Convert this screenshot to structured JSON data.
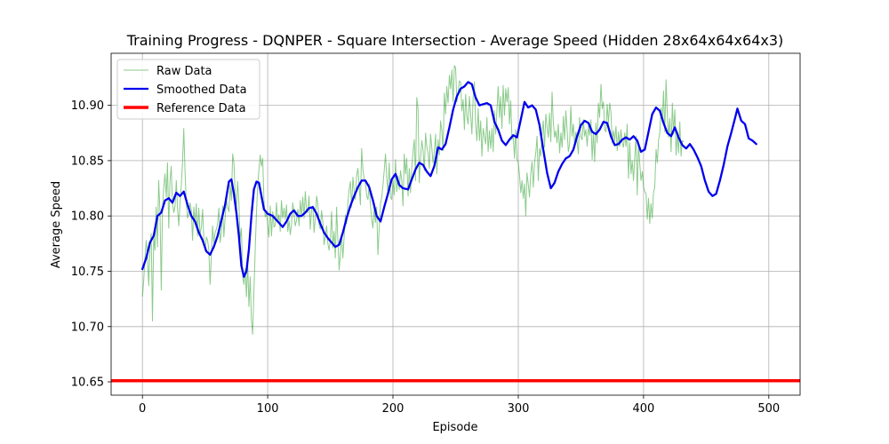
{
  "chart_data": {
    "type": "line",
    "title": "Training Progress - DQNPER - Square Intersection - Average Speed (Hidden 28x64x64x64x3)",
    "xlabel": "Episode",
    "ylabel": "Average Speed",
    "xlim": [
      -25,
      525
    ],
    "ylim": [
      10.638,
      10.947
    ],
    "xticks": [
      0,
      100,
      200,
      300,
      400,
      500
    ],
    "yticks": [
      10.65,
      10.7,
      10.75,
      10.8,
      10.85,
      10.9
    ],
    "grid": true,
    "legend_position": "top-left",
    "series": [
      {
        "name": "Raw Data",
        "color": "#2ca02c",
        "style": "thin-translucent",
        "x_start": 0,
        "x_step": 1,
        "values": [
          10.727,
          10.741,
          10.761,
          10.778,
          10.762,
          10.737,
          10.771,
          10.784,
          10.705,
          10.781,
          10.769,
          10.808,
          10.772,
          10.832,
          10.803,
          10.733,
          10.807,
          10.826,
          10.838,
          10.817,
          10.848,
          10.789,
          10.831,
          10.845,
          10.812,
          10.803,
          10.809,
          10.832,
          10.807,
          10.791,
          10.812,
          10.827,
          10.848,
          10.879,
          10.841,
          10.812,
          10.798,
          10.803,
          10.812,
          10.805,
          10.778,
          10.808,
          10.793,
          10.811,
          10.782,
          10.807,
          10.783,
          10.79,
          10.806,
          10.778,
          10.769,
          10.781,
          10.778,
          10.769,
          10.738,
          10.762,
          10.791,
          10.776,
          10.785,
          10.788,
          10.793,
          10.807,
          10.776,
          10.785,
          10.809,
          10.781,
          10.798,
          10.815,
          10.808,
          10.804,
          10.828,
          10.814,
          10.856,
          10.848,
          10.821,
          10.807,
          10.831,
          10.812,
          10.778,
          10.789,
          10.745,
          10.738,
          10.752,
          10.727,
          10.758,
          10.718,
          10.745,
          10.706,
          10.693,
          10.731,
          10.768,
          10.803,
          10.828,
          10.842,
          10.855,
          10.845,
          10.852,
          10.814,
          10.799,
          10.803,
          10.793,
          10.781,
          10.809,
          10.782,
          10.804,
          10.79,
          10.791,
          10.812,
          10.795,
          10.801,
          10.786,
          10.814,
          10.798,
          10.807,
          10.797,
          10.81,
          10.786,
          10.796,
          10.783,
          10.792,
          10.812,
          10.802,
          10.791,
          10.796,
          10.806,
          10.791,
          10.814,
          10.8,
          10.817,
          10.798,
          10.822,
          10.806,
          10.803,
          10.818,
          10.788,
          10.806,
          10.809,
          10.785,
          10.798,
          10.818,
          10.811,
          10.792,
          10.788,
          10.805,
          10.795,
          10.774,
          10.782,
          10.791,
          10.775,
          10.769,
          10.779,
          10.804,
          10.771,
          10.786,
          10.762,
          10.808,
          10.779,
          10.751,
          10.766,
          10.784,
          10.762,
          10.781,
          10.801,
          10.793,
          10.812,
          10.824,
          10.831,
          10.808,
          10.835,
          10.822,
          10.815,
          10.837,
          10.843,
          10.827,
          10.81,
          10.861,
          10.842,
          10.834,
          10.83,
          10.818,
          10.815,
          10.829,
          10.81,
          10.797,
          10.789,
          10.807,
          10.794,
          10.808,
          10.765,
          10.788,
          10.811,
          10.817,
          10.828,
          10.841,
          10.856,
          10.835,
          10.82,
          10.848,
          10.817,
          10.815,
          10.832,
          10.819,
          10.851,
          10.822,
          10.836,
          10.824,
          10.841,
          10.832,
          10.809,
          10.856,
          10.838,
          10.852,
          10.818,
          10.843,
          10.821,
          10.844,
          10.858,
          10.869,
          10.832,
          10.907,
          10.897,
          10.83,
          10.852,
          10.868,
          10.859,
          10.841,
          10.875,
          10.862,
          10.857,
          10.843,
          10.874,
          10.862,
          10.848,
          10.857,
          10.874,
          10.838,
          10.869,
          10.855,
          10.886,
          10.877,
          10.859,
          10.911,
          10.892,
          10.917,
          10.902,
          10.927,
          10.915,
          10.932,
          10.903,
          10.936,
          10.934,
          10.903,
          10.911,
          10.922,
          10.921,
          10.895,
          10.905,
          10.878,
          10.91,
          10.89,
          10.883,
          10.908,
          10.892,
          10.874,
          10.907,
          10.921,
          10.883,
          10.868,
          10.897,
          10.868,
          10.886,
          10.854,
          10.879,
          10.872,
          10.865,
          10.889,
          10.858,
          10.877,
          10.861,
          10.879,
          10.858,
          10.895,
          10.874,
          10.896,
          10.917,
          10.889,
          10.908,
          10.879,
          10.918,
          10.891,
          10.915,
          10.903,
          10.916,
          10.883,
          10.904,
          10.869,
          10.873,
          10.852,
          10.878,
          10.851,
          10.848,
          10.837,
          10.821,
          10.832,
          10.816,
          10.829,
          10.8,
          10.839,
          10.829,
          10.817,
          10.838,
          10.849,
          10.826,
          10.848,
          10.857,
          10.872,
          10.832,
          10.861,
          10.854,
          10.874,
          10.886,
          10.862,
          10.892,
          10.88,
          10.871,
          10.893,
          10.867,
          10.912,
          10.885,
          10.871,
          10.877,
          10.866,
          10.883,
          10.857,
          10.875,
          10.862,
          10.89,
          10.869,
          10.895,
          10.878,
          10.858,
          10.865,
          10.899,
          10.872,
          10.883,
          10.864,
          10.876,
          10.867,
          10.856,
          10.889,
          10.871,
          10.869,
          10.887,
          10.872,
          10.878,
          10.863,
          10.881,
          10.873,
          10.887,
          10.851,
          10.876,
          10.849,
          10.884,
          10.866,
          10.902,
          10.889,
          10.919,
          10.897,
          10.903,
          10.878,
          10.876,
          10.901,
          10.884,
          10.902,
          10.894,
          10.866,
          10.877,
          10.868,
          10.881,
          10.859,
          10.876,
          10.863,
          10.878,
          10.866,
          10.862,
          10.875,
          10.863,
          10.883,
          10.834,
          10.866,
          10.838,
          10.85,
          10.832,
          10.853,
          10.872,
          10.819,
          10.864,
          10.848,
          10.832,
          10.84,
          10.826,
          10.822,
          10.82,
          10.797,
          10.816,
          10.793,
          10.811,
          10.798,
          10.821,
          10.826,
          10.86,
          10.848,
          10.869,
          10.875,
          10.898,
          10.885,
          10.913,
          10.876,
          10.923,
          10.893,
          10.871,
          10.888,
          10.858,
          10.902,
          10.874,
          10.896,
          10.855,
          10.876,
          10.857,
          10.885,
          10.854,
          10.868,
          10.867
        ]
      },
      {
        "name": "Smoothed Data",
        "color": "#0000ee",
        "style": "thick",
        "points": [
          [
            0,
            10.752
          ],
          [
            3,
            10.762
          ],
          [
            6,
            10.776
          ],
          [
            9,
            10.782
          ],
          [
            12,
            10.8
          ],
          [
            15,
            10.803
          ],
          [
            18,
            10.814
          ],
          [
            21,
            10.816
          ],
          [
            24,
            10.812
          ],
          [
            27,
            10.821
          ],
          [
            30,
            10.818
          ],
          [
            33,
            10.822
          ],
          [
            36,
            10.81
          ],
          [
            39,
            10.8
          ],
          [
            42,
            10.795
          ],
          [
            45,
            10.785
          ],
          [
            48,
            10.778
          ],
          [
            51,
            10.768
          ],
          [
            54,
            10.765
          ],
          [
            57,
            10.772
          ],
          [
            60,
            10.782
          ],
          [
            63,
            10.796
          ],
          [
            66,
            10.81
          ],
          [
            69,
            10.831
          ],
          [
            71,
            10.833
          ],
          [
            73,
            10.82
          ],
          [
            75,
            10.803
          ],
          [
            77,
            10.782
          ],
          [
            79,
            10.755
          ],
          [
            81,
            10.745
          ],
          [
            83,
            10.75
          ],
          [
            85,
            10.77
          ],
          [
            87,
            10.8
          ],
          [
            89,
            10.824
          ],
          [
            91,
            10.831
          ],
          [
            93,
            10.83
          ],
          [
            95,
            10.818
          ],
          [
            97,
            10.806
          ],
          [
            100,
            10.802
          ],
          [
            104,
            10.8
          ],
          [
            108,
            10.795
          ],
          [
            112,
            10.79
          ],
          [
            115,
            10.795
          ],
          [
            118,
            10.802
          ],
          [
            121,
            10.805
          ],
          [
            124,
            10.8
          ],
          [
            127,
            10.8
          ],
          [
            130,
            10.803
          ],
          [
            133,
            10.807
          ],
          [
            136,
            10.808
          ],
          [
            139,
            10.802
          ],
          [
            142,
            10.793
          ],
          [
            145,
            10.785
          ],
          [
            148,
            10.78
          ],
          [
            151,
            10.776
          ],
          [
            154,
            10.772
          ],
          [
            157,
            10.774
          ],
          [
            160,
            10.785
          ],
          [
            163,
            10.798
          ],
          [
            166,
            10.809
          ],
          [
            169,
            10.818
          ],
          [
            172,
            10.826
          ],
          [
            175,
            10.832
          ],
          [
            178,
            10.832
          ],
          [
            181,
            10.826
          ],
          [
            184,
            10.814
          ],
          [
            187,
            10.8
          ],
          [
            190,
            10.795
          ],
          [
            193,
            10.808
          ],
          [
            196,
            10.82
          ],
          [
            199,
            10.833
          ],
          [
            202,
            10.838
          ],
          [
            205,
            10.828
          ],
          [
            208,
            10.825
          ],
          [
            212,
            10.824
          ],
          [
            215,
            10.833
          ],
          [
            218,
            10.842
          ],
          [
            221,
            10.848
          ],
          [
            224,
            10.846
          ],
          [
            227,
            10.84
          ],
          [
            230,
            10.836
          ],
          [
            233,
            10.845
          ],
          [
            236,
            10.862
          ],
          [
            239,
            10.86
          ],
          [
            242,
            10.865
          ],
          [
            245,
            10.88
          ],
          [
            248,
            10.896
          ],
          [
            251,
            10.908
          ],
          [
            254,
            10.915
          ],
          [
            257,
            10.917
          ],
          [
            260,
            10.921
          ],
          [
            263,
            10.919
          ],
          [
            266,
            10.907
          ],
          [
            269,
            10.9
          ],
          [
            272,
            10.901
          ],
          [
            275,
            10.902
          ],
          [
            278,
            10.9
          ],
          [
            281,
            10.885
          ],
          [
            284,
            10.878
          ],
          [
            287,
            10.868
          ],
          [
            290,
            10.864
          ],
          [
            293,
            10.869
          ],
          [
            296,
            10.873
          ],
          [
            299,
            10.871
          ],
          [
            302,
            10.887
          ],
          [
            305,
            10.903
          ],
          [
            308,
            10.898
          ],
          [
            311,
            10.9
          ],
          [
            314,
            10.896
          ],
          [
            317,
            10.882
          ],
          [
            320,
            10.86
          ],
          [
            323,
            10.839
          ],
          [
            326,
            10.825
          ],
          [
            329,
            10.83
          ],
          [
            332,
            10.84
          ],
          [
            335,
            10.847
          ],
          [
            338,
            10.852
          ],
          [
            341,
            10.854
          ],
          [
            344,
            10.86
          ],
          [
            347,
            10.872
          ],
          [
            350,
            10.882
          ],
          [
            353,
            10.886
          ],
          [
            356,
            10.884
          ],
          [
            359,
            10.876
          ],
          [
            362,
            10.874
          ],
          [
            365,
            10.878
          ],
          [
            368,
            10.885
          ],
          [
            371,
            10.884
          ],
          [
            374,
            10.872
          ],
          [
            377,
            10.864
          ],
          [
            380,
            10.865
          ],
          [
            383,
            10.869
          ],
          [
            386,
            10.871
          ],
          [
            389,
            10.869
          ],
          [
            392,
            10.872
          ],
          [
            395,
            10.868
          ],
          [
            398,
            10.858
          ],
          [
            401,
            10.86
          ],
          [
            404,
            10.876
          ],
          [
            407,
            10.892
          ],
          [
            410,
            10.898
          ],
          [
            413,
            10.895
          ],
          [
            416,
            10.884
          ],
          [
            419,
            10.875
          ],
          [
            422,
            10.872
          ],
          [
            425,
            10.88
          ],
          [
            428,
            10.871
          ],
          [
            431,
            10.864
          ],
          [
            434,
            10.861
          ],
          [
            437,
            10.865
          ],
          [
            440,
            10.86
          ],
          [
            443,
            10.853
          ],
          [
            446,
            10.845
          ],
          [
            449,
            10.832
          ],
          [
            452,
            10.822
          ],
          [
            455,
            10.818
          ],
          [
            458,
            10.82
          ],
          [
            461,
            10.832
          ],
          [
            464,
            10.846
          ],
          [
            467,
            10.863
          ],
          [
            470,
            10.875
          ],
          [
            473,
            10.888
          ],
          [
            475,
            10.897
          ],
          [
            478,
            10.886
          ],
          [
            481,
            10.883
          ],
          [
            484,
            10.87
          ],
          [
            487,
            10.868
          ],
          [
            490,
            10.865
          ]
        ]
      },
      {
        "name": "Reference Data",
        "color": "#ff0000",
        "style": "very-thick",
        "constant": 10.651
      }
    ]
  }
}
